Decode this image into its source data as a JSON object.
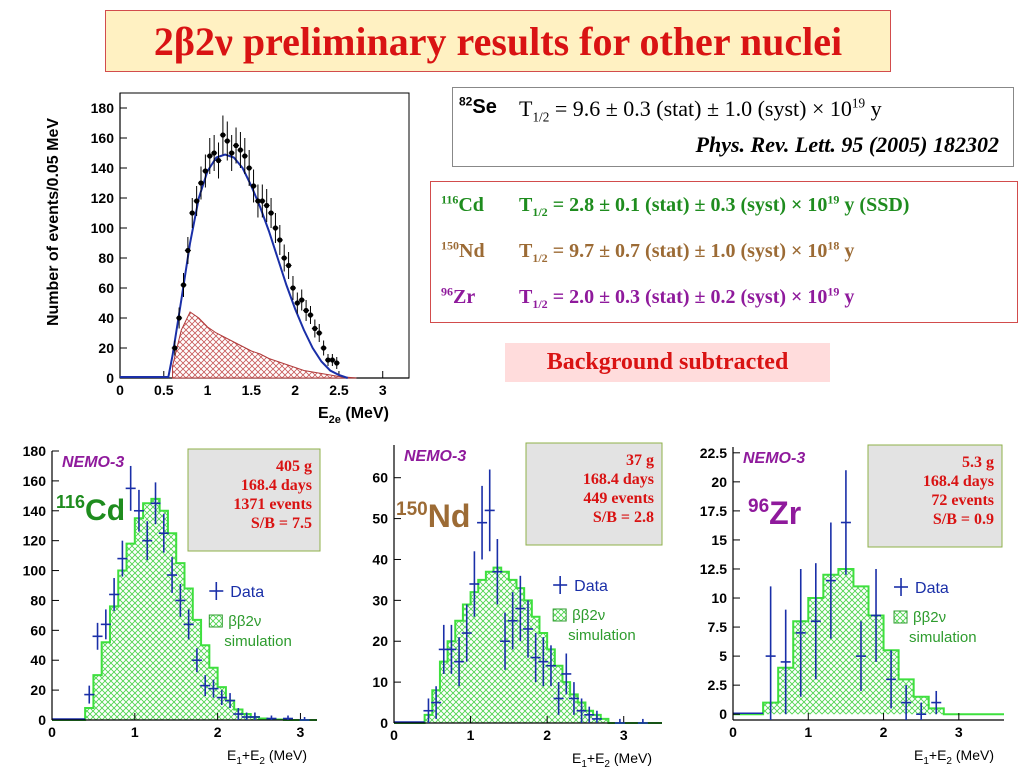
{
  "title": "2β2ν preliminary results for other nuclei",
  "se_result": {
    "isotope_mass": "82",
    "isotope": "Se",
    "t_half": "T",
    "t_half_sub": "1/2",
    "value": "= 9.6 ± 0.3 (stat) ± 1.0 (syst) × 10",
    "exponent": "19",
    "unit": "y",
    "reference": "Phys. Rev. Lett. 95 (2005) 182302"
  },
  "results": [
    {
      "mass": "116",
      "element": "Cd",
      "prefix": "T",
      "sub": "1/2",
      "value": " =  2.8 ± 0.1 (stat) ± 0.3 (syst) × 10",
      "exp": "19",
      "suffix": " y (SSD)",
      "color": "#1e8c1e"
    },
    {
      "mass": "150",
      "element": "Nd",
      "prefix": "T",
      "sub": "1/2",
      "value": " =  9.7 ± 0.7 (stat) ± 1.0 (syst) × 10",
      "exp": "18",
      "suffix": " y",
      "color": "#9c6b35"
    },
    {
      "mass": "96",
      "element": "Zr",
      "prefix": "T",
      "sub": "1/2",
      "value": " =  2.0 ± 0.3 (stat) ± 0.2 (syst) × 10",
      "exp": "19",
      "suffix": " y",
      "color": "#8f1a9c"
    }
  ],
  "background_note": "Background subtracted",
  "chart_data": [
    {
      "type": "scatter",
      "id": "se82",
      "ylabel": "Number of events/0.05 MeV",
      "xlabel_main": "E",
      "xlabel_sub": "2e",
      "xlabel_unit": " (MeV)",
      "xlim": [
        0,
        3.3
      ],
      "ylim": [
        0,
        190
      ],
      "xticks": [
        0,
        0.5,
        1,
        1.5,
        2,
        2.5,
        3
      ],
      "xtick_labels": [
        "0",
        "0.5",
        "1",
        "1.5",
        "2",
        "2.5",
        "3"
      ],
      "yticks": [
        0,
        20,
        40,
        60,
        80,
        100,
        120,
        140,
        160,
        180
      ],
      "ytick_labels": [
        "0",
        "20",
        "40",
        "60",
        "80",
        "100",
        "120",
        "140",
        "160",
        "180"
      ],
      "data_x": [
        0.625,
        0.675,
        0.725,
        0.775,
        0.825,
        0.875,
        0.925,
        0.975,
        1.025,
        1.075,
        1.125,
        1.175,
        1.225,
        1.275,
        1.325,
        1.375,
        1.425,
        1.475,
        1.525,
        1.575,
        1.625,
        1.675,
        1.725,
        1.775,
        1.825,
        1.875,
        1.925,
        1.975,
        2.025,
        2.075,
        2.125,
        2.175,
        2.225,
        2.275,
        2.325,
        2.375,
        2.425,
        2.475
      ],
      "data_y": [
        20,
        40,
        62,
        85,
        110,
        118,
        130,
        138,
        148,
        150,
        145,
        162,
        158,
        150,
        155,
        152,
        148,
        140,
        128,
        118,
        118,
        115,
        110,
        100,
        92,
        80,
        75,
        60,
        50,
        52,
        45,
        42,
        33,
        30,
        20,
        12,
        12,
        10
      ],
      "data_err": [
        5,
        7,
        8,
        9,
        10,
        10,
        11,
        11,
        12,
        12,
        12,
        13,
        13,
        12,
        12,
        12,
        12,
        12,
        11,
        11,
        11,
        11,
        10,
        10,
        10,
        9,
        9,
        8,
        7,
        7,
        7,
        6,
        6,
        6,
        5,
        4,
        4,
        4
      ],
      "fit_x": [
        0.55,
        0.6,
        0.7,
        0.8,
        0.9,
        1.0,
        1.1,
        1.2,
        1.3,
        1.4,
        1.5,
        1.6,
        1.7,
        1.8,
        1.9,
        2.0,
        2.1,
        2.2,
        2.3,
        2.4,
        2.5,
        2.6
      ],
      "fit_y": [
        0,
        15,
        52,
        90,
        120,
        138,
        147,
        149,
        147,
        140,
        128,
        114,
        98,
        80,
        62,
        46,
        32,
        20,
        11,
        5,
        2,
        0
      ],
      "bg_x": [
        0.6,
        0.7,
        0.8,
        0.9,
        1.0,
        1.1,
        1.2,
        1.3,
        1.4,
        1.5,
        1.6,
        1.7,
        1.8,
        1.9,
        2.0,
        2.1,
        2.2,
        2.3,
        2.4,
        2.5,
        2.6,
        2.7
      ],
      "bg_y": [
        8,
        32,
        44,
        40,
        34,
        30,
        27,
        24,
        21,
        18,
        16,
        13,
        11,
        9,
        7,
        5,
        4,
        3,
        2,
        1,
        0.5,
        0
      ]
    },
    {
      "type": "bar",
      "id": "cd116",
      "label": "NEMO-3",
      "isotope_mass": "116",
      "isotope": "Cd",
      "isotope_color": "#1e8c1e",
      "info": [
        "405 g",
        "168.4 days",
        "1371  events",
        "S/B = 7.5"
      ],
      "legend_data": "Data",
      "legend_sim_a": "ββ2ν",
      "legend_sim_b": "simulation",
      "xlabel": "E",
      "xlim": [
        0,
        3.2
      ],
      "ylim": [
        0,
        180
      ],
      "yticks": [
        0,
        20,
        40,
        60,
        80,
        100,
        120,
        140,
        160,
        180
      ],
      "ytick_labels": [
        "0",
        "20",
        "40",
        "60",
        "80",
        "100",
        "120",
        "140",
        "160",
        "180"
      ],
      "xticks": [
        0,
        1,
        2,
        3
      ],
      "xtick_labels": [
        "0",
        "1",
        "2",
        "3"
      ],
      "bin_width": 0.1,
      "bins_x": [
        0.4,
        0.5,
        0.6,
        0.7,
        0.8,
        0.9,
        1.0,
        1.1,
        1.2,
        1.3,
        1.4,
        1.5,
        1.6,
        1.7,
        1.8,
        1.9,
        2.0,
        2.1,
        2.2,
        2.3,
        2.4,
        2.5,
        2.6,
        2.7,
        2.8
      ],
      "bins_y": [
        8,
        30,
        52,
        76,
        100,
        118,
        135,
        145,
        148,
        140,
        125,
        105,
        88,
        67,
        50,
        35,
        22,
        13,
        7,
        4,
        2,
        1,
        0.5,
        0.3,
        0
      ],
      "data_x": [
        0.45,
        0.55,
        0.65,
        0.75,
        0.85,
        0.95,
        1.05,
        1.15,
        1.25,
        1.35,
        1.45,
        1.55,
        1.65,
        1.75,
        1.85,
        1.95,
        2.05,
        2.15,
        2.25,
        2.35,
        2.45,
        2.65,
        2.85,
        3.05
      ],
      "data_y": [
        17,
        56,
        64,
        84,
        108,
        155,
        140,
        120,
        145,
        125,
        97,
        80,
        64,
        40,
        23,
        21,
        15,
        13,
        4,
        2,
        2,
        1,
        1,
        0
      ],
      "data_err": [
        6,
        9,
        10,
        11,
        12,
        15,
        14,
        13,
        14,
        13,
        12,
        11,
        10,
        8,
        7,
        6,
        5,
        5,
        4,
        3,
        3,
        2,
        2,
        2
      ]
    },
    {
      "type": "bar",
      "id": "nd150",
      "label": "NEMO-3",
      "isotope_mass": "150",
      "isotope": "Nd",
      "isotope_color": "#9c6b35",
      "info": [
        "37 g",
        "168.4 days",
        "449  events",
        "S/B = 2.8"
      ],
      "legend_data": "Data",
      "legend_sim_a": "ββ2ν",
      "legend_sim_b": "simulation",
      "xlabel": "E",
      "xlim": [
        0,
        3.5
      ],
      "ylim": [
        0,
        68
      ],
      "yticks": [
        0,
        10,
        20,
        30,
        40,
        50,
        60
      ],
      "ytick_labels": [
        "0",
        "10",
        "20",
        "30",
        "40",
        "50",
        "60"
      ],
      "xticks": [
        0,
        1,
        2,
        3
      ],
      "xtick_labels": [
        "0",
        "1",
        "2",
        "3"
      ],
      "bin_width": 0.1,
      "bins_x": [
        0.4,
        0.5,
        0.6,
        0.7,
        0.8,
        0.9,
        1.0,
        1.1,
        1.2,
        1.3,
        1.4,
        1.5,
        1.6,
        1.7,
        1.8,
        1.9,
        2.0,
        2.1,
        2.2,
        2.3,
        2.4,
        2.5,
        2.6,
        2.7,
        2.8
      ],
      "bins_y": [
        2,
        8,
        15,
        20,
        25,
        29,
        32,
        35,
        37,
        38,
        37,
        35,
        33,
        30,
        26,
        22,
        18,
        14,
        10,
        7,
        5,
        3,
        2,
        1,
        0
      ],
      "data_x": [
        0.45,
        0.55,
        0.65,
        0.75,
        0.85,
        0.95,
        1.05,
        1.15,
        1.25,
        1.35,
        1.45,
        1.55,
        1.65,
        1.75,
        1.85,
        1.95,
        2.05,
        2.15,
        2.25,
        2.35,
        2.45,
        2.55,
        2.65,
        2.95,
        3.25
      ],
      "data_y": [
        3,
        5,
        18,
        18,
        15,
        22,
        34,
        49,
        52,
        37,
        20,
        25,
        28,
        23,
        16,
        15,
        14,
        6,
        12,
        6,
        3,
        2,
        1,
        0,
        0
      ],
      "data_err": [
        3,
        4,
        6,
        6,
        6,
        7,
        8,
        9,
        10,
        8,
        7,
        7,
        8,
        7,
        6,
        6,
        5,
        4,
        5,
        4,
        3,
        2,
        2,
        1,
        1
      ]
    },
    {
      "type": "bar",
      "id": "zr96",
      "label": "NEMO-3",
      "isotope_mass": "96",
      "isotope": "Zr",
      "isotope_color": "#8f1a9c",
      "info": [
        "5.3 g",
        "168.4 days",
        "72  events",
        "S/B = 0.9"
      ],
      "legend_data": "Data",
      "legend_sim_a": "ββ2ν",
      "legend_sim_b": "simulation",
      "xlabel": "E",
      "xlim": [
        0,
        3.6
      ],
      "ylim": [
        -0.5,
        23
      ],
      "yticks": [
        0,
        2.5,
        5,
        7.5,
        10,
        12.5,
        15,
        17.5,
        20,
        22.5
      ],
      "ytick_labels": [
        "0",
        "2.5",
        "5",
        "7.5",
        "10",
        "12.5",
        "15",
        "17.5",
        "20",
        "22.5"
      ],
      "xticks": [
        0,
        1,
        2,
        3
      ],
      "xtick_labels": [
        "0",
        "1",
        "2",
        "3"
      ],
      "bin_width": 0.2,
      "bins_x": [
        0.4,
        0.6,
        0.8,
        1.0,
        1.2,
        1.4,
        1.6,
        1.8,
        2.0,
        2.2,
        2.4,
        2.6,
        2.8
      ],
      "bins_y": [
        1,
        4,
        8,
        10,
        12,
        12.5,
        11,
        8.5,
        5.5,
        3,
        1.5,
        0.5,
        0
      ],
      "data_x": [
        0.5,
        0.7,
        0.9,
        1.1,
        1.3,
        1.5,
        1.7,
        1.9,
        2.1,
        2.3,
        2.5,
        2.7
      ],
      "data_y": [
        5,
        4.5,
        7,
        8,
        11.5,
        16.5,
        5,
        8.5,
        3,
        1,
        0,
        1
      ],
      "data_err": [
        6,
        4.5,
        5.5,
        5,
        5,
        4.5,
        3,
        4,
        2.5,
        1.5,
        1,
        1
      ]
    }
  ]
}
